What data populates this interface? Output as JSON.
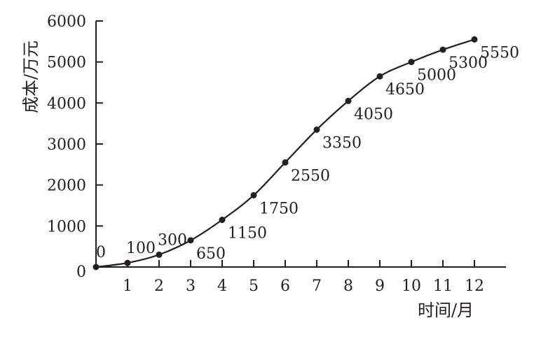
{
  "chart_data": {
    "type": "line",
    "title": "",
    "xlabel": "时间/月",
    "ylabel": "成本/万元",
    "x": [
      0,
      1,
      2,
      3,
      4,
      5,
      6,
      7,
      8,
      9,
      10,
      11,
      12
    ],
    "values": [
      0,
      100,
      300,
      650,
      1150,
      1750,
      2550,
      3350,
      4050,
      4650,
      5000,
      5300,
      5550
    ],
    "data_labels": [
      "0",
      "100",
      "300",
      "650",
      "1150",
      "1750",
      "2550",
      "3350",
      "4050",
      "4650",
      "5000",
      "5300",
      "5550"
    ],
    "x_ticks": [
      "1",
      "2",
      "3",
      "4",
      "5",
      "6",
      "7",
      "8",
      "9",
      "10",
      "11",
      "12"
    ],
    "y_ticks": [
      "0",
      "1000",
      "2000",
      "3000",
      "4000",
      "5000",
      "6000"
    ],
    "xlim": [
      0,
      13
    ],
    "ylim": [
      0,
      6000
    ],
    "grid": false,
    "markers": true,
    "smooth": true,
    "line_color": "#231f20"
  }
}
